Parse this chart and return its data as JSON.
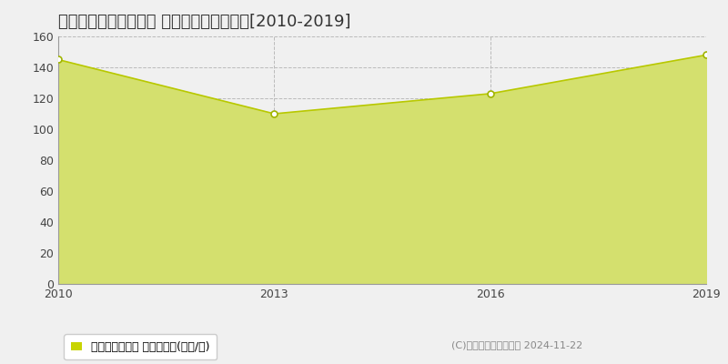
{
  "title": "名古屋市名東区照が丘 マンション価格推移[2010-2019]",
  "years": [
    2010,
    2013,
    2016,
    2019
  ],
  "values": [
    145,
    110,
    123,
    148
  ],
  "ylim": [
    0,
    160
  ],
  "yticks": [
    0,
    20,
    40,
    60,
    80,
    100,
    120,
    140,
    160
  ],
  "xticks": [
    2010,
    2013,
    2016,
    2019
  ],
  "line_color": "#b8c800",
  "fill_color": "#d4e06e",
  "fill_alpha": 1.0,
  "marker_color": "white",
  "marker_edge_color": "#a0b400",
  "grid_color": "#bbbbbb",
  "bg_color": "#f0f0f0",
  "plot_bg_color": "#f0f0f0",
  "title_fontsize": 13,
  "legend_label": "マンション価格 平均坪単価(万円/坪)",
  "legend_marker_color": "#c8d400",
  "copyright_text": "(C)土地価格ドットコム 2024-11-22",
  "tick_fontsize": 9,
  "legend_fontsize": 9,
  "copyright_fontsize": 8
}
